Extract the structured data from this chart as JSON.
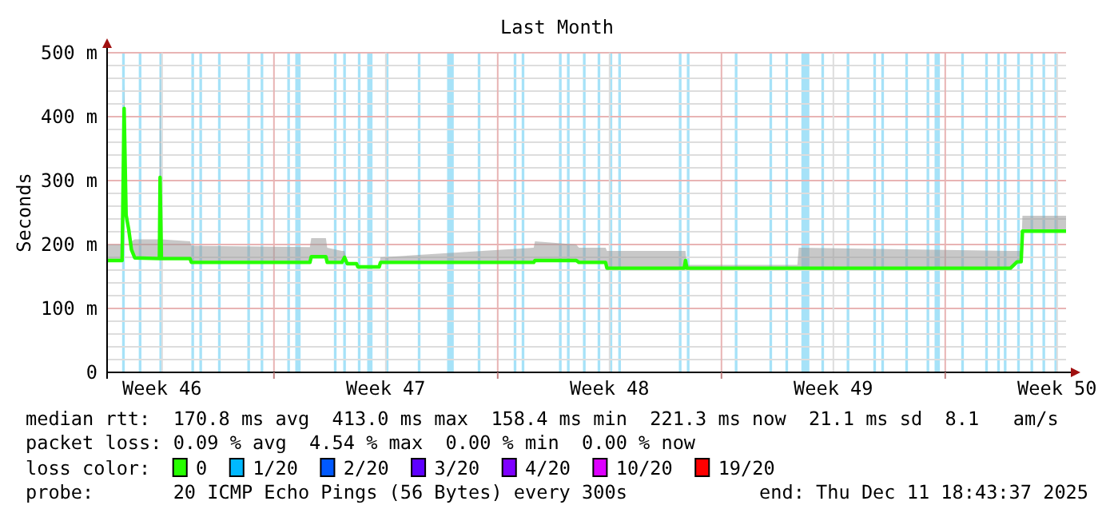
{
  "chart_data": {
    "type": "line",
    "title": "Last Month",
    "ylabel": "Seconds",
    "xlim": [
      "2025-11-11T18:43",
      "2025-12-11T18:43"
    ],
    "xticks": [
      {
        "value": "2025-11-13T12:00",
        "label": "Week 46"
      },
      {
        "value": "2025-11-17T00:00",
        "label": null
      },
      {
        "value": "2025-11-20T12:00",
        "label": "Week 47"
      },
      {
        "value": "2025-11-24T00:00",
        "label": null
      },
      {
        "value": "2025-11-27T12:00",
        "label": "Week 48"
      },
      {
        "value": "2025-12-01T00:00",
        "label": null
      },
      {
        "value": "2025-12-04T12:00",
        "label": "Week 49"
      },
      {
        "value": "2025-12-08T00:00",
        "label": null
      },
      {
        "value": "2025-12-11T12:00",
        "label": "Week 50"
      }
    ],
    "ylim": [
      0,
      500
    ],
    "yticks": [
      0,
      {
        "value": 20,
        "label": null
      },
      {
        "value": 40,
        "label": null
      },
      {
        "value": 60,
        "label": null
      },
      {
        "value": 80,
        "label": null
      },
      {
        "value": 100,
        "label": "100 m"
      },
      {
        "value": 120,
        "label": null
      },
      {
        "value": 140,
        "label": null
      },
      {
        "value": 160,
        "label": null
      },
      {
        "value": 180,
        "label": null
      },
      {
        "value": 200,
        "label": "200 m"
      },
      {
        "value": 220,
        "label": null
      },
      {
        "value": 240,
        "label": null
      },
      {
        "value": 260,
        "label": null
      },
      {
        "value": 280,
        "label": null
      },
      {
        "value": 300,
        "label": "300 m"
      },
      {
        "value": 320,
        "label": null
      },
      {
        "value": 340,
        "label": null
      },
      {
        "value": 360,
        "label": null
      },
      {
        "value": 380,
        "label": null
      },
      {
        "value": 400,
        "label": "400 m"
      },
      {
        "value": 420,
        "label": null
      },
      {
        "value": 440,
        "label": null
      },
      {
        "value": 460,
        "label": null
      },
      {
        "value": 480,
        "label": null
      },
      {
        "value": 500,
        "label": "500 m"
      }
    ],
    "grid": true,
    "legend": "bottom",
    "legend_title": "loss color:",
    "marker": "none",
    "line_style": "solid",
    "series": [
      {
        "name": "0",
        "color": "#26ff00",
        "x": [
          "2025-11-11T18:43",
          "2025-11-12T06:00",
          "2025-11-12T07:30",
          "2025-11-12T09:00",
          "2025-11-12T11:00",
          "2025-11-12T13:00",
          "2025-11-12T15:30",
          "2025-11-13T10:00",
          "2025-11-13T10:30",
          "2025-11-13T11:30",
          "2025-11-14T09:00",
          "2025-11-14T10:00",
          "2025-11-18T03:00",
          "2025-11-18T04:00",
          "2025-11-18T15:00",
          "2025-11-18T16:00",
          "2025-11-19T03:00",
          "2025-11-19T05:00",
          "2025-11-19T07:00",
          "2025-11-19T14:00",
          "2025-11-19T15:00",
          "2025-11-20T07:00",
          "2025-11-20T08:00",
          "2025-11-25T03:00",
          "2025-11-25T04:00",
          "2025-11-26T11:00",
          "2025-11-26T13:00",
          "2025-11-27T09:00",
          "2025-11-27T10:00",
          "2025-11-29T20:00",
          "2025-11-29T21:00",
          "2025-11-29T22:00",
          "2025-12-03T09:00",
          "2025-12-03T10:00",
          "2025-12-10T01:00",
          "2025-12-10T06:00",
          "2025-12-10T09:00",
          "2025-12-10T10:00",
          "2025-12-11T18:43"
        ],
        "values": [
          175,
          175,
          413,
          246,
          223,
          192,
          179,
          178,
          305,
          178,
          178,
          172,
          172,
          181,
          181,
          172,
          172,
          180,
          170,
          170,
          165,
          165,
          172,
          172,
          175,
          175,
          172,
          172,
          163,
          163,
          175,
          163,
          163,
          163,
          163,
          173,
          173,
          221,
          221
        ],
        "lower": [
          175,
          175,
          413,
          246,
          223,
          192,
          179,
          178,
          305,
          178,
          178,
          172,
          172,
          181,
          181,
          172,
          172,
          180,
          170,
          170,
          165,
          165,
          172,
          172,
          175,
          175,
          172,
          172,
          163,
          163,
          175,
          163,
          163,
          163,
          163,
          173,
          173,
          221,
          221
        ],
        "upper": [
          200,
          200,
          450,
          250,
          225,
          205,
          208,
          208,
          500,
          208,
          205,
          198,
          196,
          210,
          210,
          195,
          190,
          190,
          172,
          172,
          167,
          167,
          180,
          195,
          205,
          200,
          195,
          195,
          190,
          190,
          190,
          168,
          168,
          195,
          190,
          190,
          190,
          245,
          245
        ]
      },
      {
        "name": "1/20",
        "color": "#00b8ff"
      },
      {
        "name": "2/20",
        "color": "#0059ff"
      },
      {
        "name": "3/20",
        "color": "#5e00ff"
      },
      {
        "name": "4/20",
        "color": "#7e00ff"
      },
      {
        "name": "10/20",
        "color": "#dd00ff"
      },
      {
        "name": "19/20",
        "color": "#ff0000"
      }
    ],
    "bands": [
      {
        "axis": "x",
        "from": "2025-11-12T06:00",
        "to": "2025-11-12T08:00",
        "color": "#a6e2f8"
      },
      {
        "axis": "x",
        "from": "2025-11-12T18:30",
        "to": "2025-11-12T20:30",
        "color": "#a6e2f8"
      },
      {
        "axis": "x",
        "from": "2025-11-13T10:00",
        "to": "2025-11-13T12:00",
        "color": "#a6e2f8"
      },
      {
        "axis": "x",
        "from": "2025-11-14T10:00",
        "to": "2025-11-14T12:00",
        "color": "#a6e2f8"
      },
      {
        "axis": "x",
        "from": "2025-11-14T16:00",
        "to": "2025-11-14T18:00",
        "color": "#a6e2f8"
      },
      {
        "axis": "x",
        "from": "2025-11-15T06:00",
        "to": "2025-11-15T08:00",
        "color": "#a6e2f8"
      },
      {
        "axis": "x",
        "from": "2025-11-16T04:00",
        "to": "2025-11-16T06:00",
        "color": "#a6e2f8"
      },
      {
        "axis": "x",
        "from": "2025-11-16T14:00",
        "to": "2025-11-16T16:00",
        "color": "#a6e2f8"
      },
      {
        "axis": "x",
        "from": "2025-11-17T10:00",
        "to": "2025-11-17T12:00",
        "color": "#a6e2f8"
      },
      {
        "axis": "x",
        "from": "2025-11-17T16:00",
        "to": "2025-11-17T20:00",
        "color": "#a6e2f8"
      },
      {
        "axis": "x",
        "from": "2025-11-18T21:00",
        "to": "2025-11-18T23:00",
        "color": "#a6e2f8"
      },
      {
        "axis": "x",
        "from": "2025-11-19T04:00",
        "to": "2025-11-19T06:00",
        "color": "#a6e2f8"
      },
      {
        "axis": "x",
        "from": "2025-11-19T15:00",
        "to": "2025-11-19T17:00",
        "color": "#a6e2f8"
      },
      {
        "axis": "x",
        "from": "2025-11-19T22:00",
        "to": "2025-11-20T02:00",
        "color": "#a6e2f8"
      },
      {
        "axis": "x",
        "from": "2025-11-20T12:00",
        "to": "2025-11-20T14:00",
        "color": "#a6e2f8"
      },
      {
        "axis": "x",
        "from": "2025-11-21T12:00",
        "to": "2025-11-21T14:00",
        "color": "#a6e2f8"
      },
      {
        "axis": "x",
        "from": "2025-11-22T10:00",
        "to": "2025-11-22T15:00",
        "color": "#a6e2f8"
      },
      {
        "axis": "x",
        "from": "2025-11-23T09:00",
        "to": "2025-11-23T11:00",
        "color": "#a6e2f8"
      },
      {
        "axis": "x",
        "from": "2025-11-24T12:00",
        "to": "2025-11-24T14:00",
        "color": "#a6e2f8"
      },
      {
        "axis": "x",
        "from": "2025-11-24T18:00",
        "to": "2025-11-24T20:00",
        "color": "#a6e2f8"
      },
      {
        "axis": "x",
        "from": "2025-11-25T22:00",
        "to": "2025-11-26T00:00",
        "color": "#a6e2f8"
      },
      {
        "axis": "x",
        "from": "2025-11-26T04:00",
        "to": "2025-11-26T06:00",
        "color": "#a6e2f8"
      },
      {
        "axis": "x",
        "from": "2025-11-26T16:00",
        "to": "2025-11-26T18:00",
        "color": "#a6e2f8"
      },
      {
        "axis": "x",
        "from": "2025-11-27T03:00",
        "to": "2025-11-27T05:00",
        "color": "#a6e2f8"
      },
      {
        "axis": "x",
        "from": "2025-11-27T12:00",
        "to": "2025-11-27T14:00",
        "color": "#a6e2f8"
      },
      {
        "axis": "x",
        "from": "2025-11-27T18:30",
        "to": "2025-11-27T20:30",
        "color": "#a6e2f8"
      },
      {
        "axis": "x",
        "from": "2025-11-29T16:00",
        "to": "2025-11-29T18:00",
        "color": "#a6e2f8"
      },
      {
        "axis": "x",
        "from": "2025-11-29T22:00",
        "to": "2025-11-30T00:00",
        "color": "#a6e2f8"
      },
      {
        "axis": "x",
        "from": "2025-12-01T10:00",
        "to": "2025-12-01T12:00",
        "color": "#a6e2f8"
      },
      {
        "axis": "x",
        "from": "2025-12-02T12:00",
        "to": "2025-12-02T14:00",
        "color": "#a6e2f8"
      },
      {
        "axis": "x",
        "from": "2025-12-03T00:00",
        "to": "2025-12-03T02:00",
        "color": "#a6e2f8"
      },
      {
        "axis": "x",
        "from": "2025-12-03T12:00",
        "to": "2025-12-03T18:00",
        "color": "#a6e2f8"
      },
      {
        "axis": "x",
        "from": "2025-12-04T03:00",
        "to": "2025-12-04T05:00",
        "color": "#a6e2f8"
      },
      {
        "axis": "x",
        "from": "2025-12-04T22:00",
        "to": "2025-12-05T00:00",
        "color": "#a6e2f8"
      },
      {
        "axis": "x",
        "from": "2025-12-05T18:00",
        "to": "2025-12-05T20:00",
        "color": "#a6e2f8"
      },
      {
        "axis": "x",
        "from": "2025-12-06T00:00",
        "to": "2025-12-06T02:00",
        "color": "#a6e2f8"
      },
      {
        "axis": "x",
        "from": "2025-12-06T18:00",
        "to": "2025-12-06T20:00",
        "color": "#a6e2f8"
      },
      {
        "axis": "x",
        "from": "2025-12-07T10:00",
        "to": "2025-12-07T12:00",
        "color": "#a6e2f8"
      },
      {
        "axis": "x",
        "from": "2025-12-07T16:00",
        "to": "2025-12-07T20:00",
        "color": "#a6e2f8"
      },
      {
        "axis": "x",
        "from": "2025-12-08T12:00",
        "to": "2025-12-08T14:00",
        "color": "#a6e2f8"
      },
      {
        "axis": "x",
        "from": "2025-12-09T06:00",
        "to": "2025-12-09T08:00",
        "color": "#a6e2f8"
      },
      {
        "axis": "x",
        "from": "2025-12-09T15:00",
        "to": "2025-12-09T17:00",
        "color": "#a6e2f8"
      },
      {
        "axis": "x",
        "from": "2025-12-09T20:00",
        "to": "2025-12-09T22:00",
        "color": "#a6e2f8"
      },
      {
        "axis": "x",
        "from": "2025-12-10T06:00",
        "to": "2025-12-10T08:00",
        "color": "#a6e2f8"
      },
      {
        "axis": "x",
        "from": "2025-12-10T16:00",
        "to": "2025-12-10T18:00",
        "color": "#a6e2f8"
      },
      {
        "axis": "x",
        "from": "2025-12-11T01:00",
        "to": "2025-12-11T03:00",
        "color": "#a6e2f8"
      },
      {
        "axis": "x",
        "from": "2025-12-11T10:00",
        "to": "2025-12-11T12:00",
        "color": "#a6e2f8"
      }
    ],
    "annotations": [
      "median rtt:  170.8 ms avg  413.0 ms max  158.4 ms min  221.3 ms now  21.1 ms sd  8.1   am/s",
      "packet loss: 0.09 % avg  4.54 % max  0.00 % min  0.00 % now",
      "probe:       20 ICMP Echo Pings (56 Bytes) every 300s",
      "end: Thu Dec 11 18:43:37 2025"
    ]
  }
}
